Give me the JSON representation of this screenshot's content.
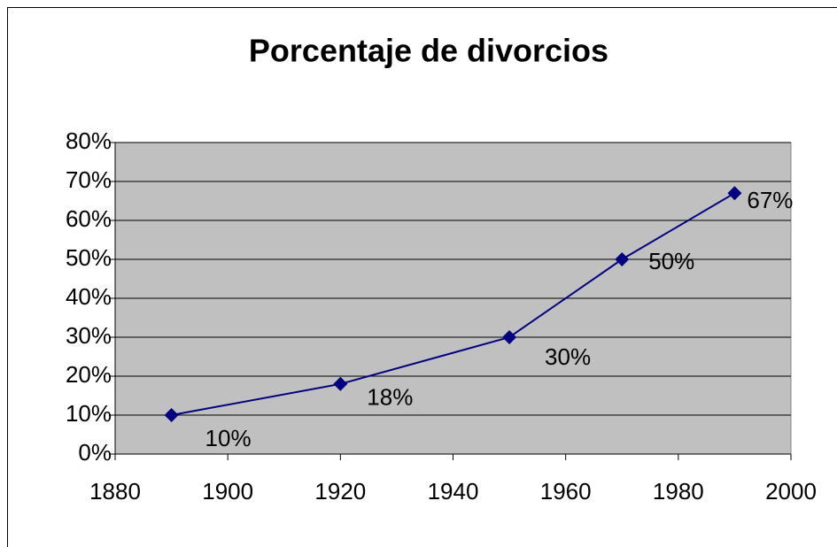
{
  "chart_data": {
    "type": "line",
    "title": "Porcentaje de divorcios",
    "x": [
      1890,
      1920,
      1950,
      1970,
      1990
    ],
    "series": [
      {
        "color": "#000080",
        "values": [
          10,
          18,
          30,
          50,
          67
        ],
        "value_labels": [
          "10%",
          "18%",
          "30%",
          "50%",
          "67%"
        ]
      }
    ],
    "xlim": [
      1880,
      2000
    ],
    "xticks": [
      1880,
      1900,
      1920,
      1940,
      1960,
      1980,
      2000
    ],
    "ylim": [
      0,
      80
    ],
    "yticks": [
      {
        "value": 0,
        "label": "0%"
      },
      {
        "value": 10,
        "label": "10%"
      },
      {
        "value": 20,
        "label": "20%"
      },
      {
        "value": 30,
        "label": "30%"
      },
      {
        "value": 40,
        "label": "40%"
      },
      {
        "value": 50,
        "label": "50%"
      },
      {
        "value": 60,
        "label": "60%"
      },
      {
        "value": 70,
        "label": "70%"
      },
      {
        "value": 80,
        "label": "80%"
      }
    ],
    "grid": true,
    "plot_background": "#c0c0c0"
  }
}
